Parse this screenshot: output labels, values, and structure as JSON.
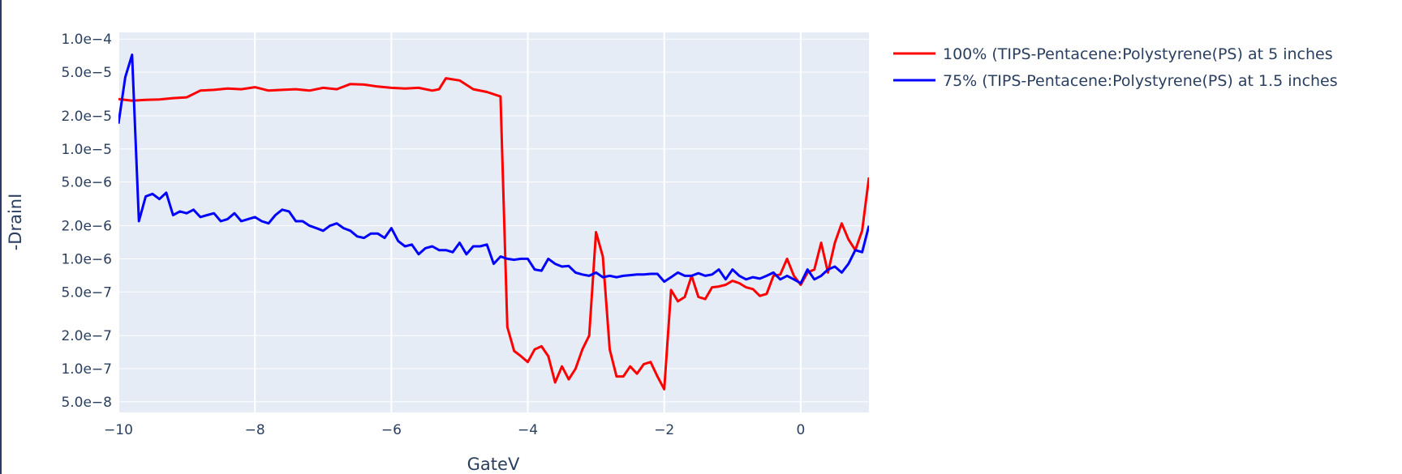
{
  "chart_data": {
    "type": "line",
    "title": "",
    "xlabel": "GateV",
    "ylabel": "-DrainI",
    "yscale": "log",
    "xlim": [
      -10,
      1.0
    ],
    "ylim": [
      4e-08,
      0.000115
    ],
    "grid": true,
    "legend_position": "right",
    "x_ticks": [
      {
        "value": -10,
        "label": "−10"
      },
      {
        "value": -8,
        "label": "−8"
      },
      {
        "value": -6,
        "label": "−6"
      },
      {
        "value": -4,
        "label": "−4"
      },
      {
        "value": -2,
        "label": "−2"
      },
      {
        "value": 0,
        "label": "0"
      }
    ],
    "y_ticks": [
      {
        "value": 0.0001,
        "label": "1.0e−4"
      },
      {
        "value": 5e-05,
        "label": "5.0e−5"
      },
      {
        "value": 2e-05,
        "label": "2.0e−5"
      },
      {
        "value": 1e-05,
        "label": "1.0e−5"
      },
      {
        "value": 5e-06,
        "label": "5.0e−6"
      },
      {
        "value": 2e-06,
        "label": "2.0e−6"
      },
      {
        "value": 1e-06,
        "label": "1.0e−6"
      },
      {
        "value": 5e-07,
        "label": "5.0e−7"
      },
      {
        "value": 2e-07,
        "label": "2.0e−7"
      },
      {
        "value": 1e-07,
        "label": "1.0e−7"
      },
      {
        "value": 5e-08,
        "label": "5.0e−8"
      }
    ],
    "series": [
      {
        "name": "100% (TIPS-Pentacene:Polystyrene(PS) at 5 inches",
        "color": "#ff0000",
        "x": [
          -10.0,
          -9.8,
          -9.6,
          -9.4,
          -9.2,
          -9.0,
          -8.8,
          -8.6,
          -8.4,
          -8.2,
          -8.0,
          -7.8,
          -7.6,
          -7.4,
          -7.2,
          -7.0,
          -6.8,
          -6.6,
          -6.4,
          -6.2,
          -6.0,
          -5.8,
          -5.6,
          -5.4,
          -5.3,
          -5.2,
          -5.0,
          -4.8,
          -4.6,
          -4.4,
          -4.3,
          -4.2,
          -4.1,
          -4.0,
          -3.9,
          -3.8,
          -3.7,
          -3.6,
          -3.5,
          -3.4,
          -3.3,
          -3.2,
          -3.1,
          -3.0,
          -2.9,
          -2.8,
          -2.7,
          -2.6,
          -2.5,
          -2.4,
          -2.3,
          -2.2,
          -2.1,
          -2.0,
          -1.9,
          -1.8,
          -1.7,
          -1.6,
          -1.5,
          -1.4,
          -1.3,
          -1.2,
          -1.1,
          -1.0,
          -0.9,
          -0.8,
          -0.7,
          -0.6,
          -0.5,
          -0.4,
          -0.3,
          -0.2,
          -0.1,
          0.0,
          0.1,
          0.2,
          0.3,
          0.4,
          0.5,
          0.6,
          0.7,
          0.8,
          0.9,
          1.0
        ],
        "y": [
          2.85e-05,
          2.75e-05,
          2.8e-05,
          2.82e-05,
          2.9e-05,
          2.95e-05,
          3.4e-05,
          3.45e-05,
          3.55e-05,
          3.5e-05,
          3.65e-05,
          3.4e-05,
          3.45e-05,
          3.5e-05,
          3.4e-05,
          3.6e-05,
          3.5e-05,
          3.9e-05,
          3.85e-05,
          3.7e-05,
          3.6e-05,
          3.55e-05,
          3.6e-05,
          3.4e-05,
          3.5e-05,
          4.4e-05,
          4.2e-05,
          3.5e-05,
          3.3e-05,
          3e-05,
          2.4e-07,
          1.45e-07,
          1.3e-07,
          1.15e-07,
          1.5e-07,
          1.6e-07,
          1.3e-07,
          7.5e-08,
          1.05e-07,
          8e-08,
          1e-07,
          1.5e-07,
          2e-07,
          1.75e-06,
          1.05e-06,
          1.5e-07,
          8.5e-08,
          8.5e-08,
          1.05e-07,
          9e-08,
          1.1e-07,
          1.15e-07,
          8.5e-08,
          6.5e-08,
          5.2e-07,
          4.1e-07,
          4.5e-07,
          7e-07,
          4.5e-07,
          4.3e-07,
          5.5e-07,
          5.6e-07,
          5.8e-07,
          6.3e-07,
          6e-07,
          5.5e-07,
          5.3e-07,
          4.6e-07,
          4.8e-07,
          7e-07,
          7.2e-07,
          1e-06,
          7e-07,
          5.8e-07,
          7.5e-07,
          8e-07,
          1.4e-06,
          7.5e-07,
          1.4e-06,
          2.1e-06,
          1.5e-06,
          1.2e-06,
          1.8e-06,
          5.5e-06
        ]
      },
      {
        "name": "75% (TIPS-Pentacene:Polystyrene(PS) at 1.5 inches",
        "color": "#0000ff",
        "x": [
          -10.0,
          -9.9,
          -9.8,
          -9.7,
          -9.6,
          -9.5,
          -9.4,
          -9.3,
          -9.2,
          -9.1,
          -9.0,
          -8.9,
          -8.8,
          -8.7,
          -8.6,
          -8.5,
          -8.4,
          -8.3,
          -8.2,
          -8.1,
          -8.0,
          -7.9,
          -7.8,
          -7.7,
          -7.6,
          -7.5,
          -7.4,
          -7.3,
          -7.2,
          -7.1,
          -7.0,
          -6.9,
          -6.8,
          -6.7,
          -6.6,
          -6.5,
          -6.4,
          -6.3,
          -6.2,
          -6.1,
          -6.0,
          -5.9,
          -5.8,
          -5.7,
          -5.6,
          -5.5,
          -5.4,
          -5.3,
          -5.2,
          -5.1,
          -5.0,
          -4.9,
          -4.8,
          -4.7,
          -4.6,
          -4.5,
          -4.4,
          -4.3,
          -4.2,
          -4.1,
          -4.0,
          -3.9,
          -3.8,
          -3.7,
          -3.6,
          -3.5,
          -3.4,
          -3.3,
          -3.2,
          -3.1,
          -3.0,
          -2.9,
          -2.8,
          -2.7,
          -2.6,
          -2.5,
          -2.4,
          -2.3,
          -2.2,
          -2.1,
          -2.0,
          -1.9,
          -1.8,
          -1.7,
          -1.6,
          -1.5,
          -1.4,
          -1.3,
          -1.2,
          -1.1,
          -1.0,
          -0.9,
          -0.8,
          -0.7,
          -0.6,
          -0.5,
          -0.4,
          -0.3,
          -0.2,
          -0.1,
          0.0,
          0.1,
          0.2,
          0.3,
          0.4,
          0.5,
          0.6,
          0.7,
          0.8,
          0.9,
          1.0
        ],
        "y": [
          1.7e-05,
          4.5e-05,
          7.2e-05,
          2.2e-06,
          3.7e-06,
          3.9e-06,
          3.5e-06,
          4e-06,
          2.5e-06,
          2.7e-06,
          2.6e-06,
          2.8e-06,
          2.4e-06,
          2.5e-06,
          2.6e-06,
          2.2e-06,
          2.3e-06,
          2.6e-06,
          2.2e-06,
          2.3e-06,
          2.4e-06,
          2.2e-06,
          2.1e-06,
          2.5e-06,
          2.8e-06,
          2.7e-06,
          2.2e-06,
          2.2e-06,
          2e-06,
          1.9e-06,
          1.8e-06,
          2e-06,
          2.1e-06,
          1.9e-06,
          1.8e-06,
          1.6e-06,
          1.55e-06,
          1.7e-06,
          1.7e-06,
          1.55e-06,
          1.9e-06,
          1.45e-06,
          1.3e-06,
          1.35e-06,
          1.1e-06,
          1.25e-06,
          1.3e-06,
          1.2e-06,
          1.2e-06,
          1.15e-06,
          1.4e-06,
          1.1e-06,
          1.3e-06,
          1.3e-06,
          1.35e-06,
          9e-07,
          1.05e-06,
          1e-06,
          9.8e-07,
          1e-06,
          1e-06,
          8e-07,
          7.8e-07,
          1e-06,
          9e-07,
          8.5e-07,
          8.6e-07,
          7.5e-07,
          7.2e-07,
          7e-07,
          7.5e-07,
          6.8e-07,
          7e-07,
          6.8e-07,
          7e-07,
          7.1e-07,
          7.2e-07,
          7.2e-07,
          7.3e-07,
          7.3e-07,
          6.2e-07,
          6.8e-07,
          7.5e-07,
          7e-07,
          7e-07,
          7.4e-07,
          7e-07,
          7.2e-07,
          8e-07,
          6.5e-07,
          8e-07,
          7e-07,
          6.5e-07,
          6.8e-07,
          6.6e-07,
          7e-07,
          7.5e-07,
          6.5e-07,
          7e-07,
          6.5e-07,
          6e-07,
          8e-07,
          6.5e-07,
          7e-07,
          8e-07,
          8.5e-07,
          7.5e-07,
          9e-07,
          1.2e-06,
          1.15e-06,
          2e-06
        ]
      }
    ]
  }
}
